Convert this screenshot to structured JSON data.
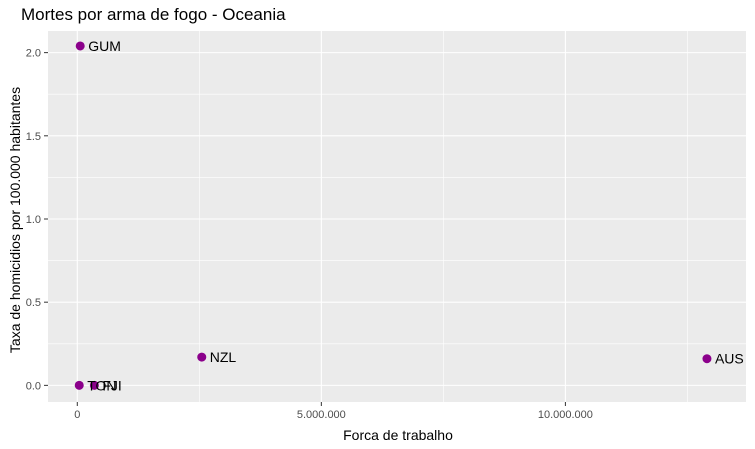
{
  "chart_data": {
    "type": "scatter",
    "title": "Mortes por arma de fogo - Oceania",
    "xlabel": "Forca de trabalho",
    "ylabel": "Taxa de homicidios por 100.000 habitantes",
    "xlim": [
      -600000,
      13700000
    ],
    "ylim": [
      -0.1,
      2.13
    ],
    "x_ticks": [
      0,
      5000000,
      10000000
    ],
    "x_tick_labels": [
      "0",
      "5.000.000",
      "10.000.000"
    ],
    "y_ticks": [
      0,
      0.5,
      1,
      1.5,
      2
    ],
    "y_tick_labels": [
      "0.0",
      "0.5",
      "1.0",
      "1.5",
      "2.0"
    ],
    "grid": true,
    "marker_color": "#8B008B",
    "panel_color": "#EBEBEB",
    "points": [
      {
        "label": "GUM",
        "x": 60000,
        "y": 2.04
      },
      {
        "label": "NZL",
        "x": 2550000,
        "y": 0.17
      },
      {
        "label": "AUS",
        "x": 12900000,
        "y": 0.16
      },
      {
        "label": "TON",
        "x": 40000,
        "y": 0.0
      },
      {
        "label": "FJI",
        "x": 350000,
        "y": 0.0
      }
    ]
  }
}
